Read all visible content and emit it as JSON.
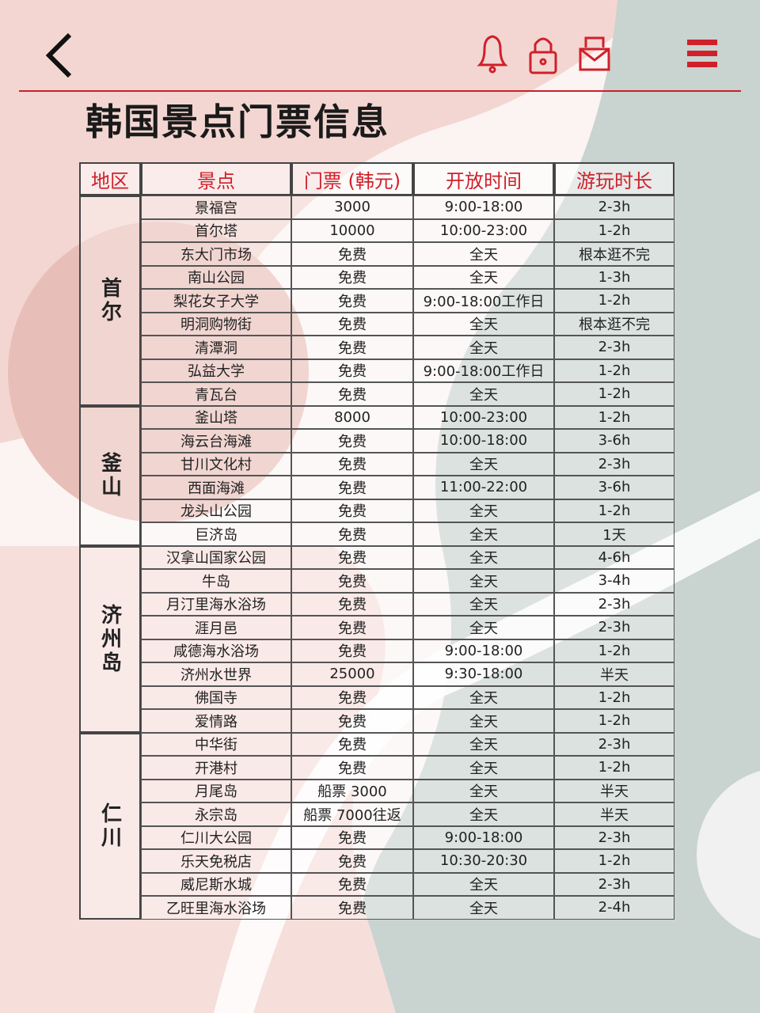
{
  "header": {
    "title": "韩国景点门票信息"
  },
  "table": {
    "columns": [
      "地区",
      "景点",
      "门票 (韩元)",
      "开放时间",
      "游玩时长"
    ],
    "groups": [
      {
        "region": "首尔",
        "rows": [
          [
            "景福宫",
            "3000",
            "9:00-18:00",
            "2-3h"
          ],
          [
            "首尔塔",
            "10000",
            "10:00-23:00",
            "1-2h"
          ],
          [
            "东大门市场",
            "免费",
            "全天",
            "根本逛不完"
          ],
          [
            "南山公园",
            "免费",
            "全天",
            "1-3h"
          ],
          [
            "梨花女子大学",
            "免费",
            "9:00-18:00工作日",
            "1-2h"
          ],
          [
            "明洞购物街",
            "免费",
            "全天",
            "根本逛不完"
          ],
          [
            "清潭洞",
            "免费",
            "全天",
            "2-3h"
          ],
          [
            "弘益大学",
            "免费",
            "9:00-18:00工作日",
            "1-2h"
          ],
          [
            "青瓦台",
            "免费",
            "全天",
            "1-2h"
          ]
        ]
      },
      {
        "region": "釜山",
        "rows": [
          [
            "釜山塔",
            "8000",
            "10:00-23:00",
            "1-2h"
          ],
          [
            "海云台海滩",
            "免费",
            "10:00-18:00",
            "3-6h"
          ],
          [
            "甘川文化村",
            "免费",
            "全天",
            "2-3h"
          ],
          [
            "西面海滩",
            "免费",
            "11:00-22:00",
            "3-6h"
          ],
          [
            "龙头山公园",
            "免费",
            "全天",
            "1-2h"
          ],
          [
            "巨济岛",
            "免费",
            "全天",
            "1天"
          ]
        ]
      },
      {
        "region": "济州岛",
        "rows": [
          [
            "汉拿山国家公园",
            "免费",
            "全天",
            "4-6h"
          ],
          [
            "牛岛",
            "免费",
            "全天",
            "3-4h"
          ],
          [
            "月汀里海水浴场",
            "免费",
            "全天",
            "2-3h"
          ],
          [
            "涯月邑",
            "免费",
            "全天",
            "2-3h"
          ],
          [
            "咸德海水浴场",
            "免费",
            "9:00-18:00",
            "1-2h"
          ],
          [
            "济州水世界",
            "25000",
            "9:30-18:00",
            "半天"
          ],
          [
            "佛国寺",
            "免费",
            "全天",
            "1-2h"
          ],
          [
            "爱情路",
            "免费",
            "全天",
            "1-2h"
          ]
        ]
      },
      {
        "region": "仁川",
        "rows": [
          [
            "中华街",
            "免费",
            "全天",
            "2-3h"
          ],
          [
            "开港村",
            "免费",
            "全天",
            "1-2h"
          ],
          [
            "月尾岛",
            "船票 3000",
            "全天",
            "半天"
          ],
          [
            "永宗岛",
            "船票 7000往返",
            "全天",
            "半天"
          ],
          [
            "仁川大公园",
            "免费",
            "9:00-18:00",
            "2-3h"
          ],
          [
            "乐天免税店",
            "免费",
            "10:30-20:30",
            "1-2h"
          ],
          [
            "威尼斯水城",
            "免费",
            "全天",
            "2-3h"
          ],
          [
            "乙旺里海水浴场",
            "免费",
            "全天",
            "2-4h"
          ]
        ]
      }
    ]
  }
}
